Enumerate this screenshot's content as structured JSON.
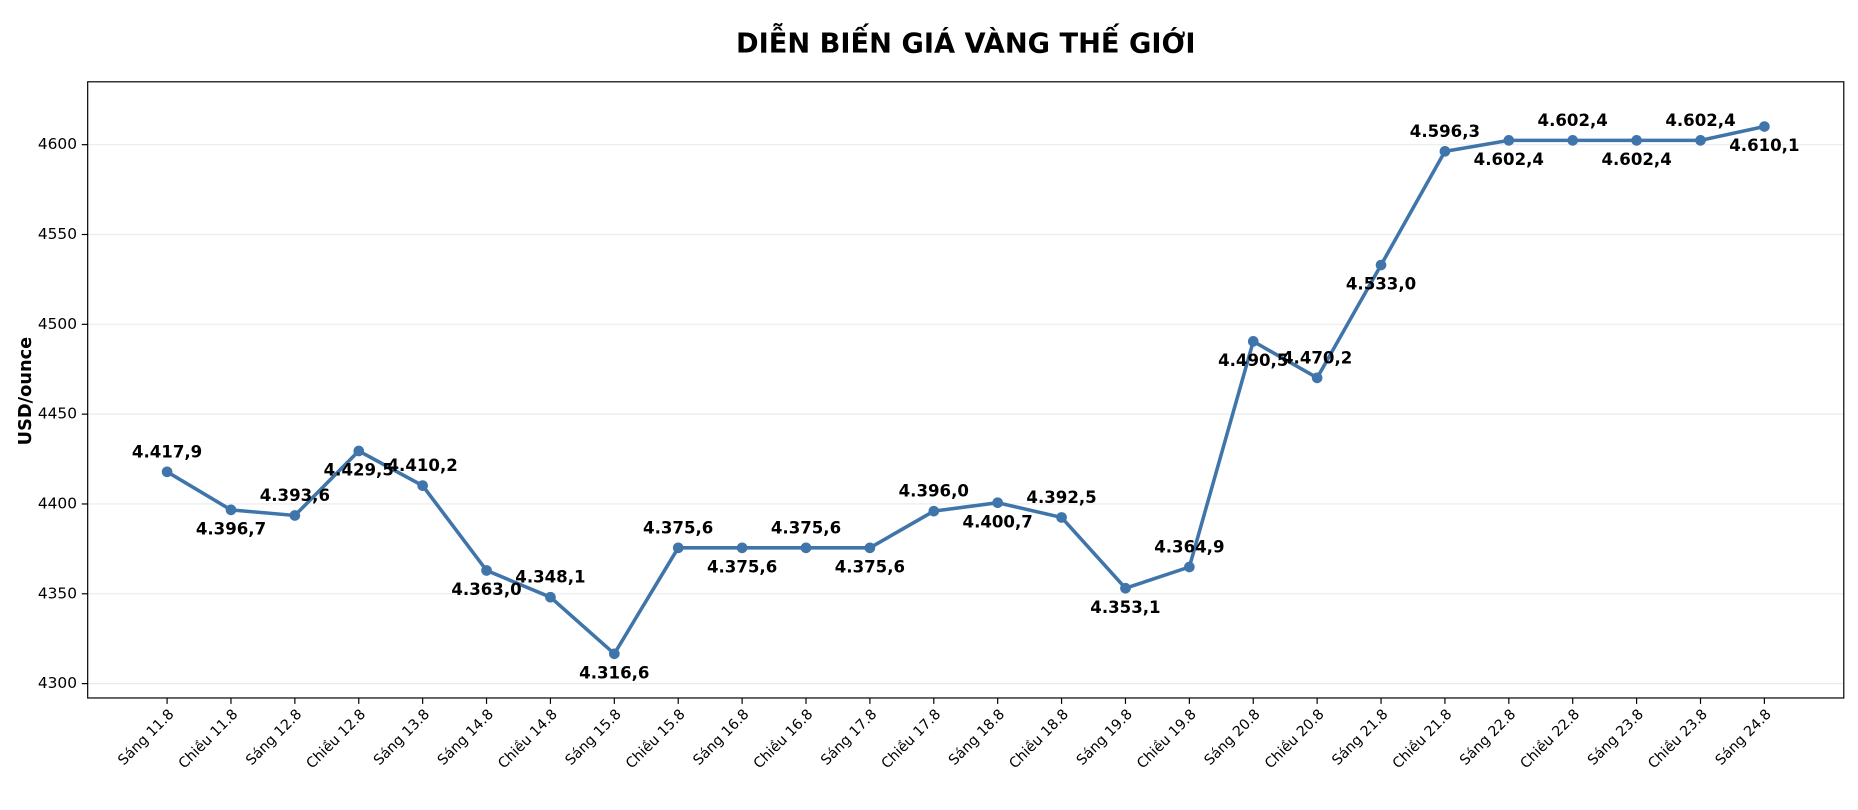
{
  "chart_data": {
    "type": "line",
    "title": "DIỄN BIẾN GIÁ VÀNG THẾ GIỚI",
    "y_label": "USD/ounce",
    "categories": [
      "Sáng 11.8",
      "Chiều 11.8",
      "Sáng 12.8",
      "Chiều 12.8",
      "Sáng 13.8",
      "Sáng 14.8",
      "Chiều 14.8",
      "Sáng 15.8",
      "Chiều 15.8",
      "Sáng 16.8",
      "Chiều 16.8",
      "Sáng 17.8",
      "Chiều 17.8",
      "Sáng 18.8",
      "Chiều 18.8",
      "Sáng 19.8",
      "Chiều 19.8",
      "Sáng 20.8",
      "Chiều 20.8",
      "Sáng 21.8",
      "Chiều 21.8",
      "Sáng 22.8",
      "Chiều 22.8",
      "Sáng 23.8",
      "Chiều 23.8",
      "Sáng 24.8"
    ],
    "values": [
      4417.9,
      4396.7,
      4393.6,
      4429.5,
      4410.2,
      4363.0,
      4348.1,
      4316.6,
      4375.6,
      4375.6,
      4375.6,
      4375.6,
      4396.0,
      4400.7,
      4392.5,
      4353.1,
      4364.9,
      4490.5,
      4470.2,
      4533.0,
      4596.3,
      4602.4,
      4602.4,
      4602.4,
      4602.4,
      4610.1
    ],
    "value_labels": [
      "4.417,9",
      "4.396,7",
      "4.393,6",
      "4.429,5",
      "4.410,2",
      "4.363,0",
      "4.348,1",
      "4.316,6",
      "4.375,6",
      "4.375,6",
      "4.375,6",
      "4.375,6",
      "4.396,0",
      "4.400,7",
      "4.392,5",
      "4.353,1",
      "4.364,9",
      "4.490,5",
      "4.470,2",
      "4.533,0",
      "4.596,3",
      "4.602,4",
      "4.602,4",
      "4.602,4",
      "4.602,4",
      "4.610,1"
    ],
    "color": "#3f75aa",
    "ylim": [
      4292,
      4635
    ],
    "yticks": [
      4300,
      4350,
      4400,
      4450,
      4500,
      4550,
      4600
    ],
    "grid": true
  }
}
